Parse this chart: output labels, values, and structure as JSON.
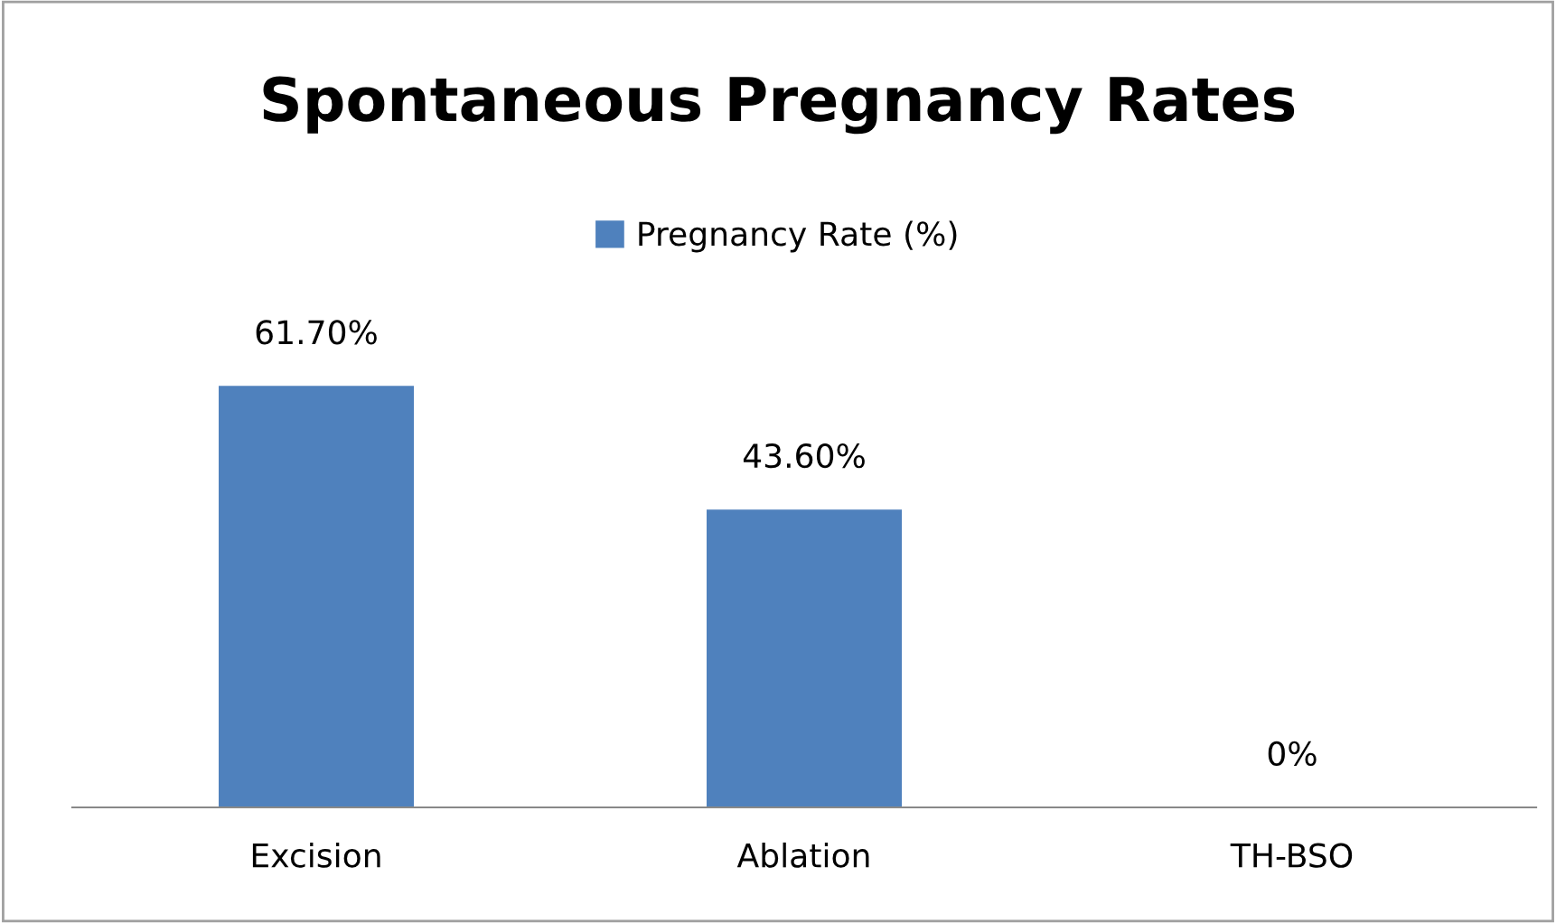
{
  "chart_data": {
    "type": "bar",
    "title": "Spontaneous Pregnancy Rates",
    "categories": [
      "Excision",
      "Ablation",
      "TH-BSO"
    ],
    "series": [
      {
        "name": "Pregnancy Rate (%)",
        "color": "#4f81bd",
        "values": [
          61.7,
          43.6,
          0
        ],
        "value_labels": [
          "61.70%",
          "43.60%",
          "0%"
        ]
      }
    ],
    "legend": "top",
    "grid": false,
    "tick_labels": "x"
  }
}
